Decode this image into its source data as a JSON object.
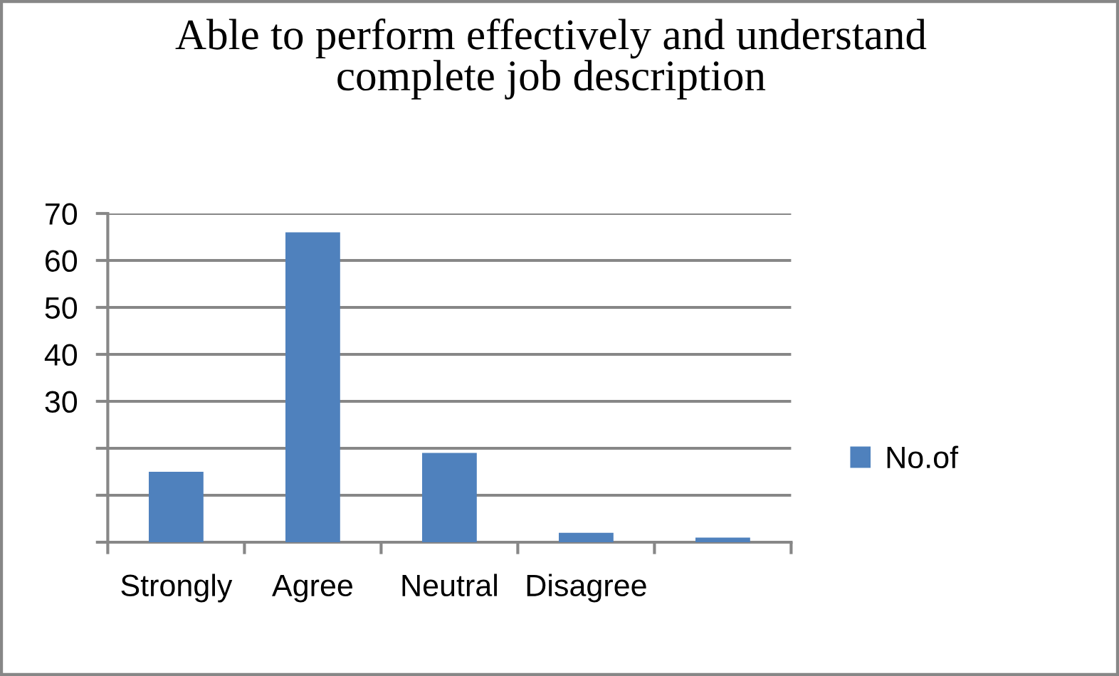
{
  "chart_data": {
    "type": "bar",
    "title": "Able to perform effectively and understand\ncomplete job description",
    "categories": [
      "Strongly",
      "Agree",
      "Neutral",
      "Disagree",
      null
    ],
    "series": [
      {
        "name": "No.of",
        "color": "#4f81bd",
        "values": [
          15,
          66,
          19,
          2,
          1
        ]
      }
    ],
    "ylim": [
      0,
      70
    ],
    "yticks": [
      {
        "value": 0,
        "label": null
      },
      {
        "value": 10,
        "label": null
      },
      {
        "value": 20,
        "label": null
      },
      30,
      40,
      50,
      60,
      70
    ],
    "grid": "y",
    "legend": "right"
  }
}
